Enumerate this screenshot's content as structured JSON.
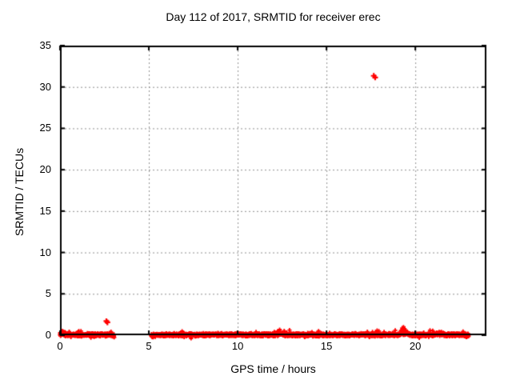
{
  "figure": {
    "background": "#ffffff",
    "text_color": "#000000"
  },
  "chart_data": {
    "type": "scatter",
    "title": "Day 112 of 2017, SRMTID for receiver erec",
    "xlabel": "GPS time / hours",
    "ylabel": "SRMTID / TECUs",
    "xlim": [
      0,
      24
    ],
    "ylim": [
      0,
      35
    ],
    "xticks": [
      0,
      5,
      10,
      15,
      20
    ],
    "yticks": [
      0,
      5,
      10,
      15,
      20,
      25,
      30,
      35
    ],
    "grid": true,
    "grid_style": "dotted",
    "legend": "none",
    "marker": "plus",
    "point_color": "#ff0000",
    "grid_color": "#909090",
    "border_color": "#000000",
    "series": [
      {
        "name": "SRMTID",
        "description": "Dense noise band near 0 TECU over two time intervals, with two isolated outlier point-pairs",
        "dense_bands": [
          {
            "x_start": 0.0,
            "x_end": 3.05,
            "y_center": 0.05,
            "y_spread": 0.22,
            "points_per_hour": 120
          },
          {
            "x_start": 5.13,
            "x_end": 23.0,
            "y_center": 0.05,
            "y_spread": 0.22,
            "points_per_hour": 120
          }
        ],
        "bumps": [
          {
            "x": 0.15,
            "w": 0.3,
            "amp": 0.45
          },
          {
            "x": 12.4,
            "w": 0.25,
            "amp": 0.3
          },
          {
            "x": 19.35,
            "w": 0.3,
            "amp": 0.9
          },
          {
            "x": 21.4,
            "w": 0.4,
            "amp": 0.3
          },
          {
            "x": 3.02,
            "w": 0.1,
            "amp": -0.35
          },
          {
            "x": 5.22,
            "w": 0.12,
            "amp": -0.3
          },
          {
            "x": 22.9,
            "w": 0.15,
            "amp": -0.25
          }
        ],
        "outliers": [
          {
            "x": 2.61,
            "y": 1.7
          },
          {
            "x": 2.67,
            "y": 1.55
          },
          {
            "x": 17.66,
            "y": 31.35
          },
          {
            "x": 17.74,
            "y": 31.15
          }
        ]
      }
    ]
  }
}
